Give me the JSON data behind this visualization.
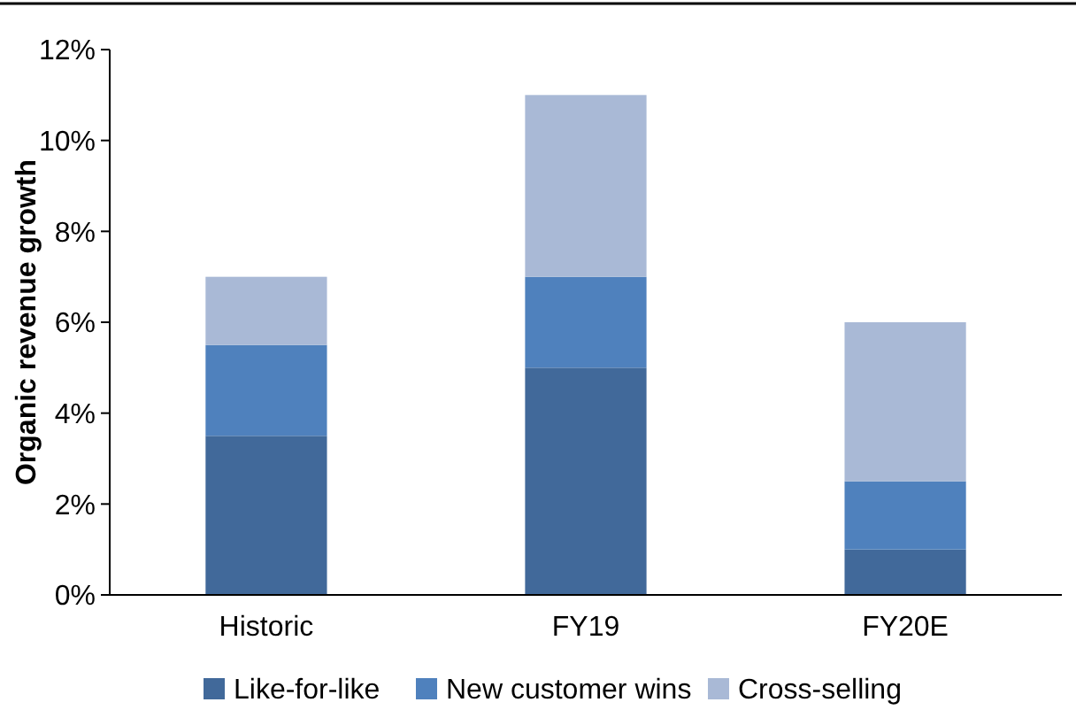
{
  "chart_data": {
    "type": "bar",
    "stacked": true,
    "ylabel": "Organic revenue growth",
    "categories": [
      "Historic",
      "FY19",
      "FY20E"
    ],
    "series": [
      {
        "name": "Like-for-like",
        "color": "#41699a",
        "values": [
          3.5,
          5,
          1
        ]
      },
      {
        "name": "New customer wins",
        "color": "#4f81bd",
        "values": [
          2,
          2,
          1.5
        ]
      },
      {
        "name": "Cross-selling",
        "color": "#a9b9d6",
        "values": [
          1.5,
          4,
          3.5
        ]
      }
    ],
    "ylim": [
      0,
      12
    ],
    "yticks": [
      {
        "value": 0,
        "label": "0%"
      },
      {
        "value": 2,
        "label": "2%"
      },
      {
        "value": 4,
        "label": "4%"
      },
      {
        "value": 6,
        "label": "6%"
      },
      {
        "value": 8,
        "label": "8%"
      },
      {
        "value": 10,
        "label": "10%"
      },
      {
        "value": 12,
        "label": "12%"
      }
    ],
    "legend": "bottom",
    "grid": false
  }
}
